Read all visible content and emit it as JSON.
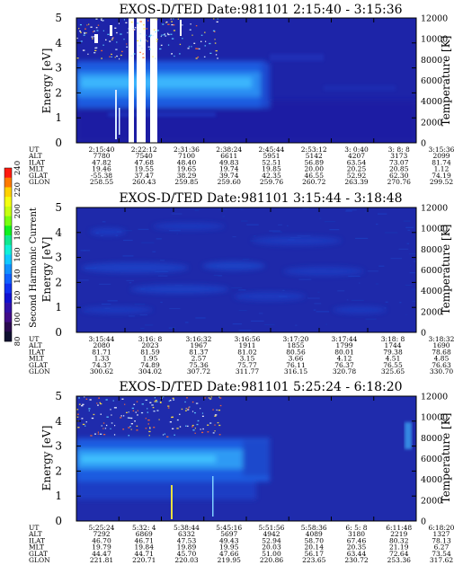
{
  "colorbar": {
    "title": "Second Harmonic Current",
    "ticks": [
      "240",
      "220",
      "200",
      "180",
      "160",
      "140",
      "120",
      "100",
      "80"
    ]
  },
  "chart_data": [
    {
      "type": "heatmap",
      "title": "EXOS-D/TED   Date:981101  2:15:40 - 3:15:36",
      "ylabel": "Energy [eV]",
      "y2label": "Temperature [K]",
      "ylim": [
        0,
        5
      ],
      "y2lim": [
        0,
        12000
      ],
      "yticks": [
        "0",
        "1",
        "2",
        "3",
        "4",
        "5"
      ],
      "y2ticks": [
        "0",
        "2000",
        "4000",
        "6000",
        "8000",
        "10000",
        "12000"
      ],
      "row_labels": [
        "UT",
        "ALT",
        "ILAT",
        "MLT",
        "GLAT",
        "GLON"
      ],
      "columns": [
        [
          "2:15:40",
          "7780",
          "47.82",
          "19.46",
          "-55.38",
          "258.55"
        ],
        [
          "2:22:12",
          "7540",
          "47.68",
          "19.55",
          "37.47",
          "260.43"
        ],
        [
          "2:31:36",
          "7100",
          "48.40",
          "19.65",
          "38.29",
          "259.85"
        ],
        [
          "2:38:24",
          "6611",
          "49.83",
          "19.74",
          "39.74",
          "259.60"
        ],
        [
          "2:45:44",
          "5951",
          "52.51",
          "19.85",
          "42.35",
          "259.76"
        ],
        [
          "2:53:12",
          "5142",
          "56.89",
          "20.00",
          "46.55",
          "260.72"
        ],
        [
          "3: 0:40",
          "4207",
          "63.54",
          "20.25",
          "52.92",
          "263.39"
        ],
        [
          "3: 8: 8",
          "3173",
          "73.07",
          "20.85",
          "62.30",
          "270.76"
        ],
        [
          "3:15:36",
          "2099",
          "81.74",
          "1.12",
          "74.19",
          "299.52"
        ]
      ]
    },
    {
      "type": "heatmap",
      "title": "EXOS-D/TED   Date:981101  3:15:44 - 3:18:48",
      "ylabel": "Energy [eV]",
      "y2label": "Temperature [K]",
      "ylim": [
        0,
        5
      ],
      "y2lim": [
        0,
        12000
      ],
      "yticks": [
        "0",
        "1",
        "2",
        "3",
        "4",
        "5"
      ],
      "y2ticks": [
        "0",
        "2000",
        "4000",
        "6000",
        "8000",
        "10000",
        "12000"
      ],
      "row_labels": [
        "UT",
        "ALT",
        "ILAT",
        "MLT",
        "GLAT",
        "GLON"
      ],
      "columns": [
        [
          "3:15:44",
          "2080",
          "81.71",
          "1.33",
          "74.37",
          "300.62"
        ],
        [
          "3:16: 8",
          "2023",
          "81.59",
          "1.95",
          "74.89",
          "304.02"
        ],
        [
          "3:16:32",
          "1967",
          "81.37",
          "2.57",
          "75.36",
          "307.72"
        ],
        [
          "3:16:56",
          "1911",
          "81.02",
          "3.15",
          "75.77",
          "311.77"
        ],
        [
          "3:17:20",
          "1855",
          "80.56",
          "3.66",
          "76.11",
          "316.15"
        ],
        [
          "3:17:44",
          "1799",
          "80.01",
          "4.12",
          "76.37",
          "320.78"
        ],
        [
          "3:18: 8",
          "1744",
          "79.38",
          "4.51",
          "76.55",
          "325.65"
        ],
        [
          "3:18:32",
          "1690",
          "78.68",
          "4.85",
          "76.63",
          "330.70"
        ]
      ]
    },
    {
      "type": "heatmap",
      "title": "EXOS-D/TED   Date:981101  5:25:24 - 6:18:20",
      "ylabel": "Energy [eV]",
      "y2label": "Temperature [K]",
      "ylim": [
        0,
        5
      ],
      "y2lim": [
        0,
        12000
      ],
      "yticks": [
        "0",
        "1",
        "2",
        "3",
        "4",
        "5"
      ],
      "y2ticks": [
        "0",
        "2000",
        "4000",
        "6000",
        "8000",
        "10000",
        "12000"
      ],
      "row_labels": [
        "UT",
        "ALT",
        "ILAT",
        "MLT",
        "GLAT",
        "GLON"
      ],
      "columns": [
        [
          "5:25:24",
          "7292",
          "46.70",
          "19.79",
          "44.47",
          "221.81"
        ],
        [
          "5:32: 4",
          "6869",
          "46.71",
          "19.84",
          "44.71",
          "220.71"
        ],
        [
          "5:38:44",
          "6332",
          "47.53",
          "19.89",
          "45.70",
          "220.03"
        ],
        [
          "5:45:16",
          "5697",
          "49.43",
          "19.95",
          "47.66",
          "219.95"
        ],
        [
          "5:51:56",
          "4942",
          "52.94",
          "20.03",
          "51.00",
          "220.86"
        ],
        [
          "5:58:36",
          "4089",
          "58.70",
          "20.14",
          "56.17",
          "223.65"
        ],
        [
          "6: 5: 8",
          "3180",
          "67.46",
          "20.35",
          "63.44",
          "230.72"
        ],
        [
          "6:11:48",
          "2219",
          "80.32",
          "21.19",
          "72.64",
          "253.36"
        ],
        [
          "6:18:20",
          "1327",
          "78.13",
          "6.27",
          "73.54",
          "317.62"
        ]
      ]
    }
  ]
}
